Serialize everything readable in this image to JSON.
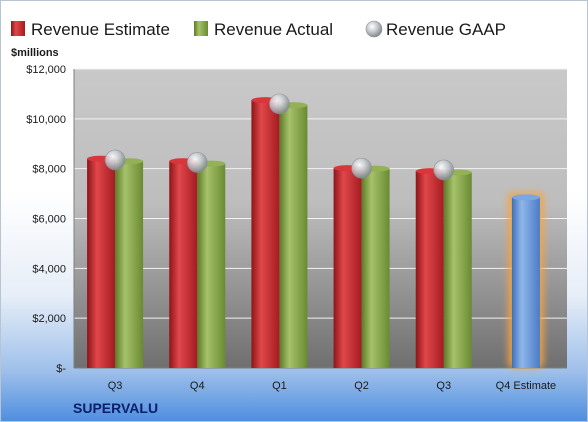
{
  "chart_data": {
    "type": "bar",
    "unit_label": "$millions",
    "company": "SUPERVALU",
    "categories": [
      "Q3",
      "Q4",
      "Q1",
      "Q2",
      "Q3",
      "Q4 Estimate"
    ],
    "y_ticks": [
      "$-",
      "$2,000",
      "$4,000",
      "$6,000",
      "$8,000",
      "$10,000",
      "$12,000"
    ],
    "ylim": [
      0,
      12000
    ],
    "grid": true,
    "legend_position": "top",
    "series": [
      {
        "name": "Revenue Estimate",
        "color": "#c0282d",
        "values": [
          8400,
          8300,
          10750,
          8020,
          7900,
          null
        ]
      },
      {
        "name": "Revenue Actual",
        "color": "#7d9b3d",
        "values": [
          8300,
          8200,
          10550,
          8000,
          7850,
          null
        ]
      },
      {
        "name": "Revenue GAAP",
        "color": "#b8bcc2",
        "values": [
          8350,
          8250,
          10600,
          8020,
          7950,
          null
        ]
      }
    ],
    "estimate": {
      "category": "Q4 Estimate",
      "value": 6850,
      "color": "#5b8fd6",
      "glow": "#f7a440"
    }
  }
}
